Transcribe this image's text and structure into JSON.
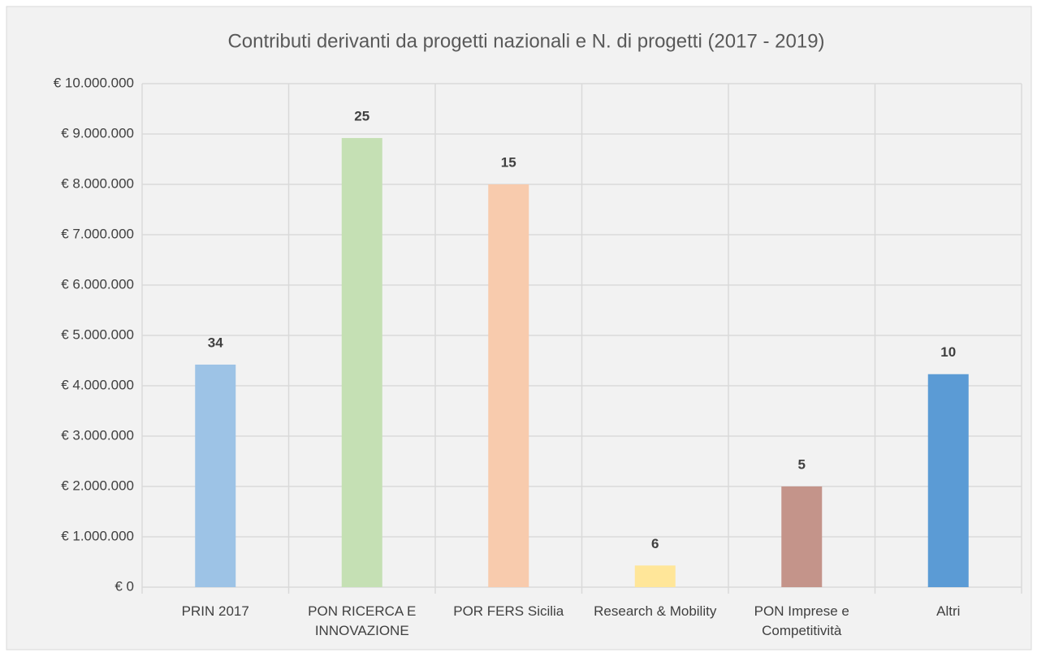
{
  "chart_data": {
    "type": "bar",
    "title": "Contributi derivanti da progetti nazionali e N. di progetti (2017 - 2019)",
    "categories": [
      "PRIN 2017",
      "PON RICERCA E INNOVAZIONE",
      "POR FERS Sicilia",
      "Research & Mobility",
      "PON Imprese e Competitività",
      "Altri"
    ],
    "values": [
      4420000,
      8920000,
      8000000,
      430000,
      2000000,
      4230000
    ],
    "project_counts": [
      34,
      25,
      15,
      6,
      5,
      10
    ],
    "colors": [
      "#9dc3e6",
      "#c5e0b4",
      "#f8cbad",
      "#ffe699",
      "#c4948a",
      "#5b9bd5"
    ],
    "ylim": [
      0,
      10000000
    ],
    "yticks": [
      {
        "value": 0,
        "label": "€ 0"
      },
      {
        "value": 1000000,
        "label": "€ 1.000.000"
      },
      {
        "value": 2000000,
        "label": "€ 2.000.000"
      },
      {
        "value": 3000000,
        "label": "€ 3.000.000"
      },
      {
        "value": 4000000,
        "label": "€ 4.000.000"
      },
      {
        "value": 5000000,
        "label": "€ 5.000.000"
      },
      {
        "value": 6000000,
        "label": "€ 6.000.000"
      },
      {
        "value": 7000000,
        "label": "€ 7.000.000"
      },
      {
        "value": 8000000,
        "label": "€ 8.000.000"
      },
      {
        "value": 9000000,
        "label": "€ 9.000.000"
      },
      {
        "value": 10000000,
        "label": "€ 10.000.000"
      }
    ],
    "grid": true
  }
}
